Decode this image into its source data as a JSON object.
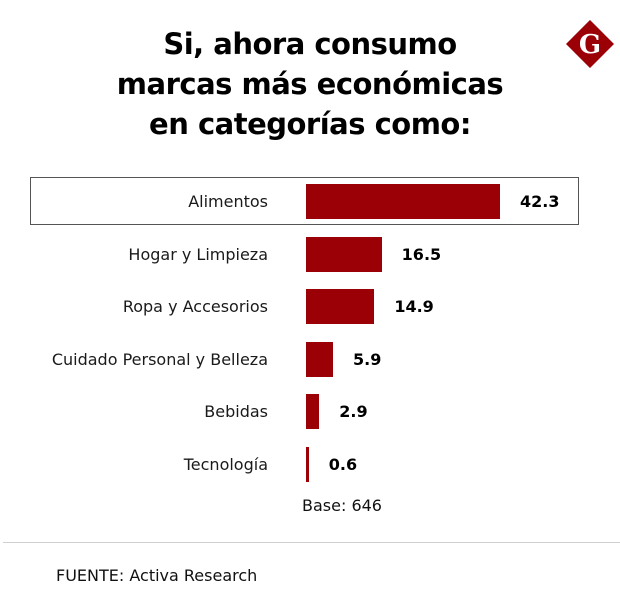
{
  "title_lines": [
    "Si, ahora consumo",
    "marcas más económicas",
    "en categorías como:"
  ],
  "logo": {
    "letter": "G",
    "icon": "g-diamond-logo",
    "color": "#9b0006"
  },
  "chart_data": {
    "type": "bar",
    "orientation": "horizontal",
    "title": "Si, ahora consumo marcas más económicas en categorías como:",
    "categories": [
      "Alimentos",
      "Hogar y Limpieza",
      "Ropa y Accesorios",
      "Cuidado Personal y Belleza",
      "Bebidas",
      "Tecnología"
    ],
    "values": [
      42.3,
      16.5,
      14.9,
      5.9,
      2.9,
      0.6
    ],
    "value_labels": [
      "42.3",
      "16.5",
      "14.9",
      "5.9",
      "2.9",
      "0.6"
    ],
    "highlighted_category": "Alimentos",
    "bar_color": "#9b0006",
    "xlabel": "",
    "ylabel": "",
    "xlim": [
      0,
      42.3
    ],
    "grid": false,
    "note": "Base: 646",
    "source": "FUENTE: Activa Research"
  }
}
